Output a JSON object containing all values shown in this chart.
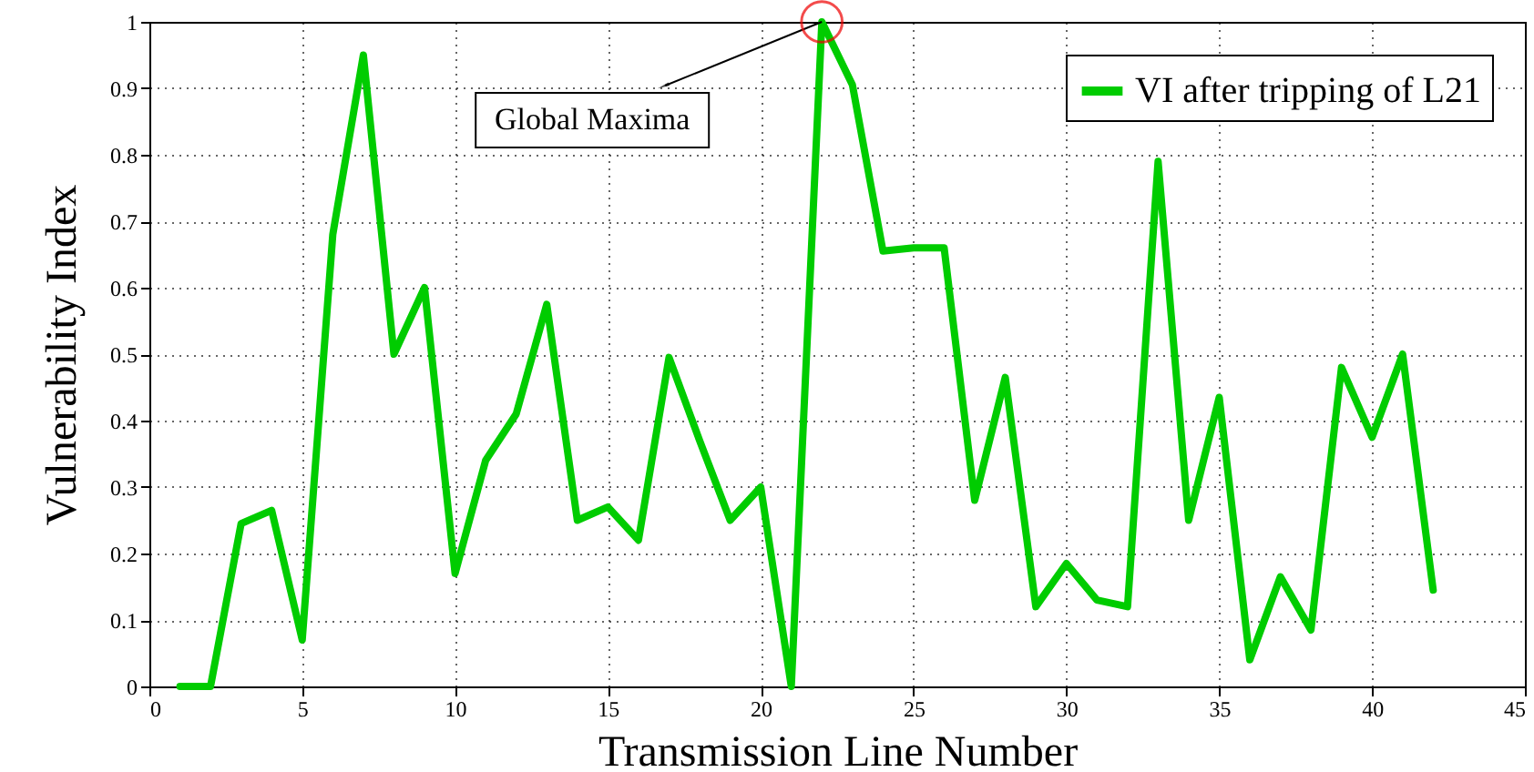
{
  "chart_data": {
    "type": "line",
    "xlabel": "Transmission Line Number",
    "ylabel": "Vulnerability Index",
    "x": [
      1,
      2,
      3,
      4,
      5,
      6,
      7,
      8,
      9,
      10,
      11,
      12,
      13,
      14,
      15,
      16,
      17,
      18,
      19,
      20,
      21,
      22,
      23,
      24,
      25,
      26,
      27,
      28,
      29,
      30,
      31,
      32,
      33,
      34,
      35,
      36,
      37,
      38,
      39,
      40,
      41,
      42
    ],
    "series": [
      {
        "name": "VI after tripping of L21",
        "color": "#00cc00",
        "values": [
          0,
          0,
          0.245,
          0.265,
          0.07,
          0.68,
          0.95,
          0.5,
          0.6,
          0.17,
          0.34,
          0.41,
          0.575,
          0.25,
          0.27,
          0.22,
          0.495,
          0.37,
          0.25,
          0.3,
          0,
          1.0,
          0.905,
          0.655,
          0.66,
          0.66,
          0.28,
          0.465,
          0.12,
          0.185,
          0.13,
          0.12,
          0.79,
          0.25,
          0.435,
          0.04,
          0.165,
          0.085,
          0.48,
          0.375,
          0.5,
          0.145
        ]
      }
    ],
    "annotations": [
      {
        "text": "Global Maxima",
        "x": 22,
        "y": 1.0
      }
    ],
    "xlim": [
      0,
      45
    ],
    "xticks": [
      0,
      5,
      10,
      15,
      20,
      25,
      30,
      35,
      40,
      45
    ],
    "ylim": [
      0,
      1
    ],
    "yticks": [
      0,
      0.1,
      0.2,
      0.3,
      0.4,
      0.5,
      0.6,
      0.7,
      0.8,
      0.9,
      1
    ],
    "grid": true,
    "legend": "top right",
    "marker": "none",
    "line_style": "solid"
  }
}
